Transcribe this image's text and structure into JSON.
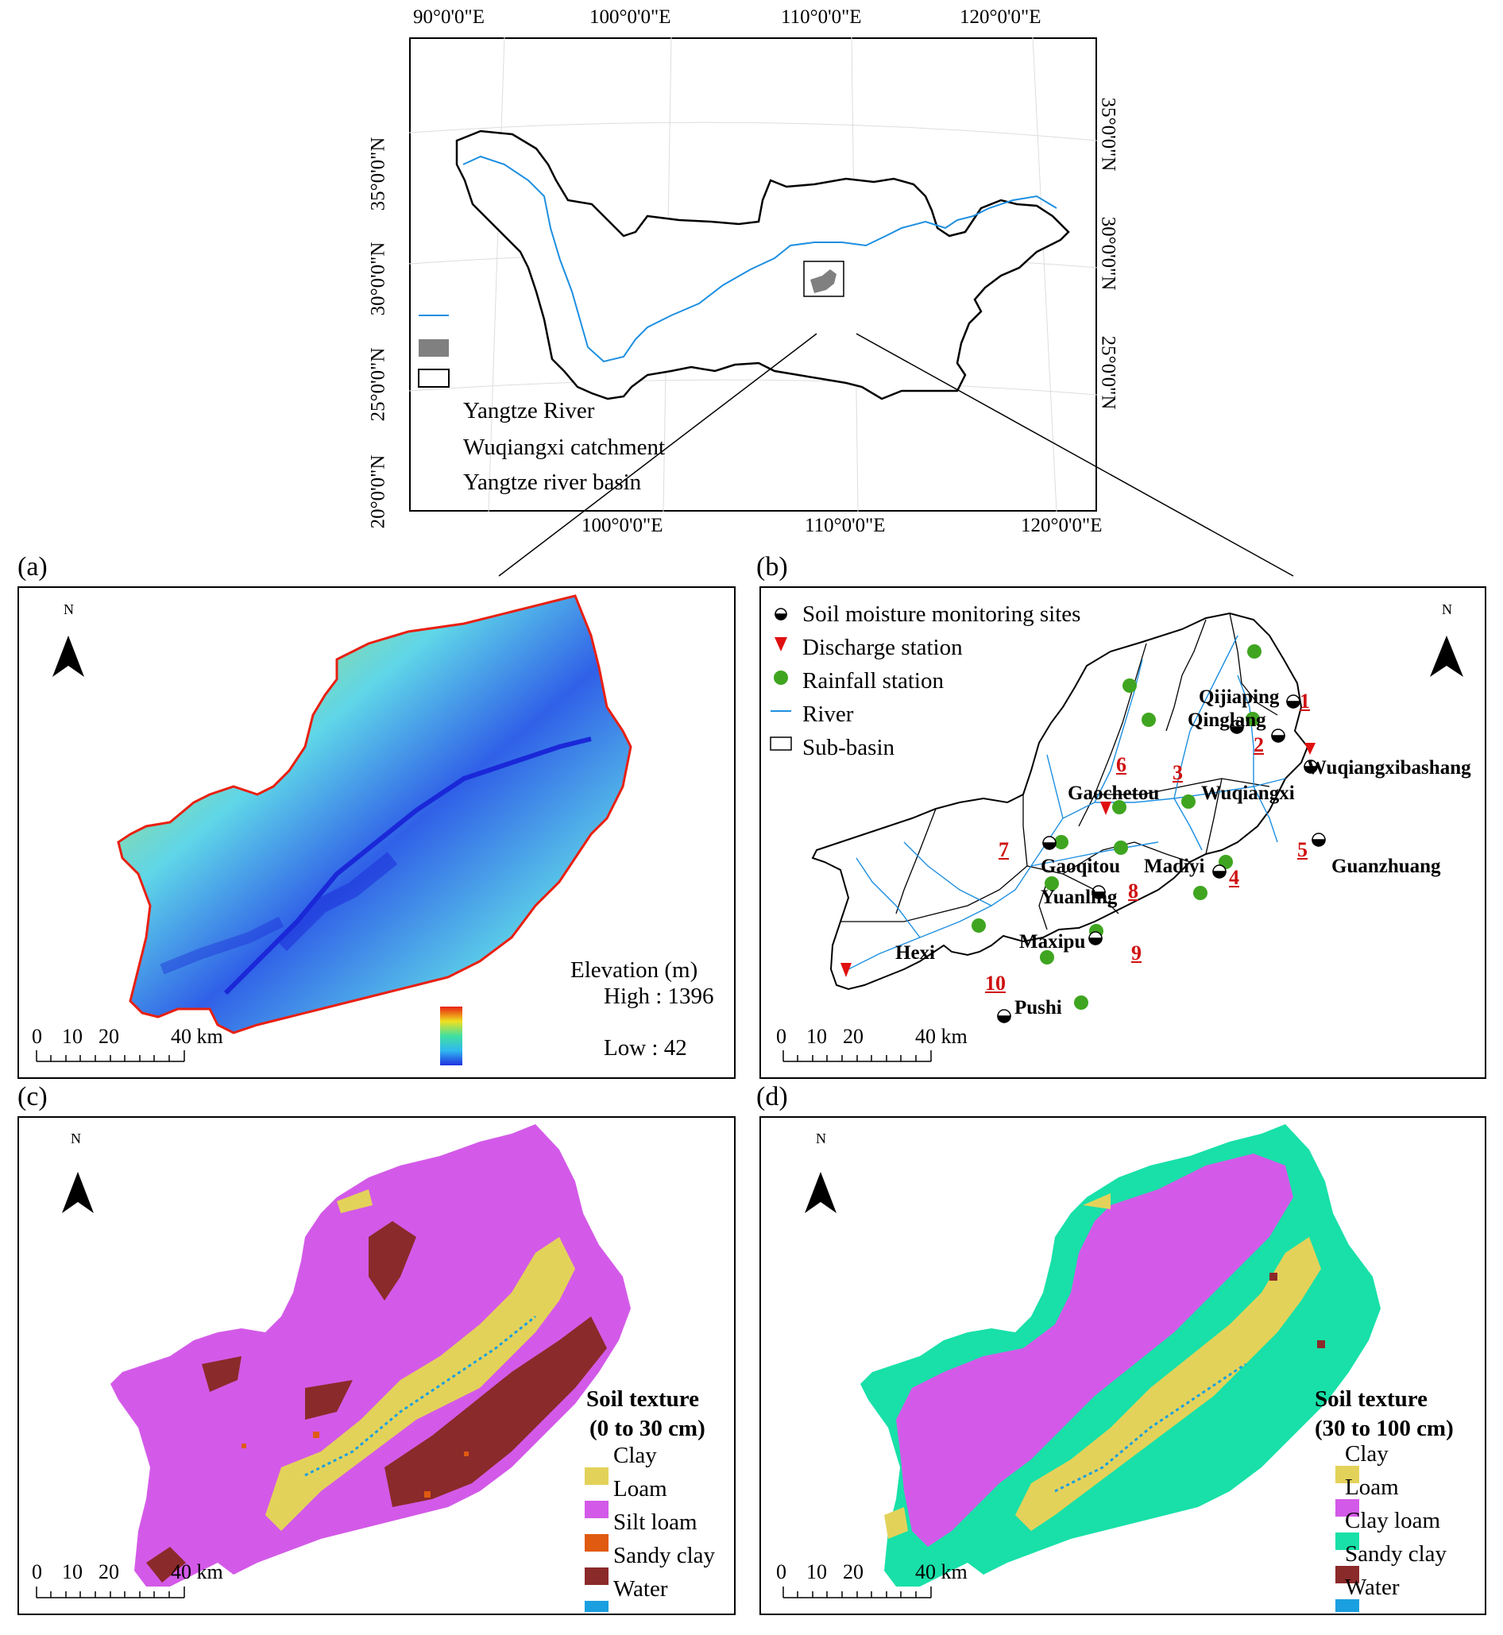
{
  "overview": {
    "top_lon_labels": [
      "90°0'0\"E",
      "100°0'0\"E",
      "110°0'0\"E",
      "120°0'0\"E"
    ],
    "bottom_lon_labels": [
      "100°0'0\"E",
      "110°0'0\"E",
      "120°0'0\"E"
    ],
    "left_lat_labels": [
      "35°0'0\"N",
      "30°0'0\"N",
      "25°0'0\"N",
      "20°0'0\"N"
    ],
    "right_lat_labels": [
      "35°0'0\"N",
      "30°0'0\"N",
      "25°0'0\"N"
    ],
    "legend": [
      "Yangtze River",
      "Wuqiangxi catchment",
      "Yangtze river basin"
    ]
  },
  "panel_a": {
    "label": "(a)",
    "north": "N",
    "legend_title": "Elevation (m)",
    "high_label": "High : 1396",
    "low_label": "Low : 42",
    "scale_labels": [
      "0",
      "10",
      "20",
      "40 km"
    ]
  },
  "panel_b": {
    "label": "(b)",
    "north": "N",
    "legend": [
      "Soil moisture monitoring sites",
      "Discharge station",
      "Rainfall station",
      "River",
      "Sub-basin"
    ],
    "stations": [
      "Qijiaping",
      "Qinglang",
      "Wuqiangxibashang",
      "Gaochetou",
      "Wuqiangxi",
      "Gaoqitou",
      "Madiyi",
      "Guanzhuang",
      "Yuanling",
      "Maxipu",
      "Hexi",
      "Pushi"
    ],
    "subbasin_numbers": [
      "1",
      "2",
      "3",
      "4",
      "5",
      "6",
      "7",
      "8",
      "9",
      "10"
    ],
    "scale_labels": [
      "0",
      "10",
      "20",
      "40 km"
    ]
  },
  "panel_c": {
    "label": "(c)",
    "north": "N",
    "legend_title_1": "Soil texture",
    "legend_title_2": "(0 to 30 cm)",
    "classes": [
      "Clay",
      "Loam",
      "Silt loam",
      "Sandy clay",
      "Water"
    ],
    "scale_labels": [
      "0",
      "10",
      "20",
      "40 km"
    ]
  },
  "panel_d": {
    "label": "(d)",
    "north": "N",
    "legend_title_1": "Soil texture",
    "legend_title_2": "(30 to 100 cm)",
    "classes": [
      "Clay",
      "Loam",
      "Clay loam",
      "Sandy clay",
      "Water"
    ],
    "scale_labels": [
      "0",
      "10",
      "20",
      "40 km"
    ]
  },
  "colors": {
    "river": "#1e8fe0",
    "catchment": "#808080",
    "rainfall": "#3fa520",
    "discharge": "#e01010",
    "subbasin_number": "#d01010",
    "clay": "#e3d25a",
    "loam": "#d35ae8",
    "silt_loam": "#e05a10",
    "sandy_clay": "#8b2a2a",
    "water": "#1a9fe0",
    "clay_loam": "#18e0a8"
  }
}
